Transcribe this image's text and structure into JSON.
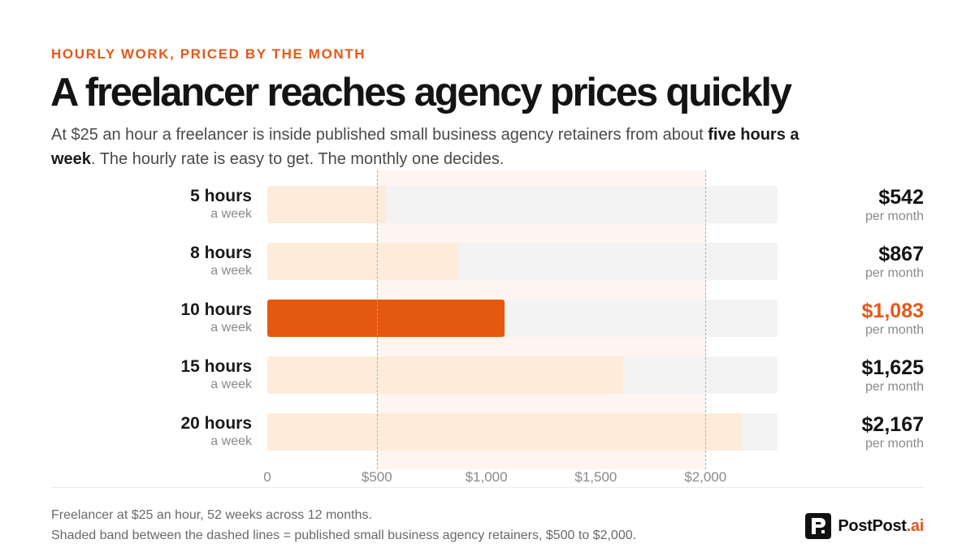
{
  "header": {
    "eyebrow": "HOURLY WORK, PRICED BY THE MONTH",
    "title": "A freelancer reaches agency prices quickly",
    "subtitle_lead": "At $25 an hour a freelancer is inside published small business agency retainers from about ",
    "subtitle_bold": "five hours a week",
    "subtitle_tail": ". The hourly rate is easy to get. The monthly one decides."
  },
  "chart_data": {
    "type": "bar",
    "orientation": "horizontal",
    "categories": [
      "5 hours",
      "8 hours",
      "10 hours",
      "15 hours",
      "20 hours"
    ],
    "category_sublabel": "a week",
    "values": [
      542,
      867,
      1083,
      1625,
      2167
    ],
    "value_labels": [
      "$542",
      "$867",
      "$1,083",
      "$1,625",
      "$2,167"
    ],
    "value_sublabel": "per month",
    "highlight_index": 2,
    "xlim": [
      0,
      2330
    ],
    "xticks": [
      0,
      500,
      1000,
      1500,
      2000
    ],
    "xtick_labels": [
      "0",
      "$500",
      "$1,000",
      "$1,500",
      "$2,000"
    ],
    "shaded_band": [
      500,
      2000
    ],
    "grid": false,
    "colors": {
      "bar": "#feebd6",
      "highlight": "#e5580f",
      "track": "#f3f3f3",
      "band": "#fdf2ec",
      "accent": "#e5581a"
    }
  },
  "footer": {
    "note1": "Freelancer at $25 an hour, 52 weeks across 12 months.",
    "note2": "Shaded band between the dashed lines = published small business agency retainers, $500 to $2,000."
  },
  "brand": {
    "name": "PostPost",
    "suffix": ".ai",
    "icon": "postpost-logo-icon"
  }
}
